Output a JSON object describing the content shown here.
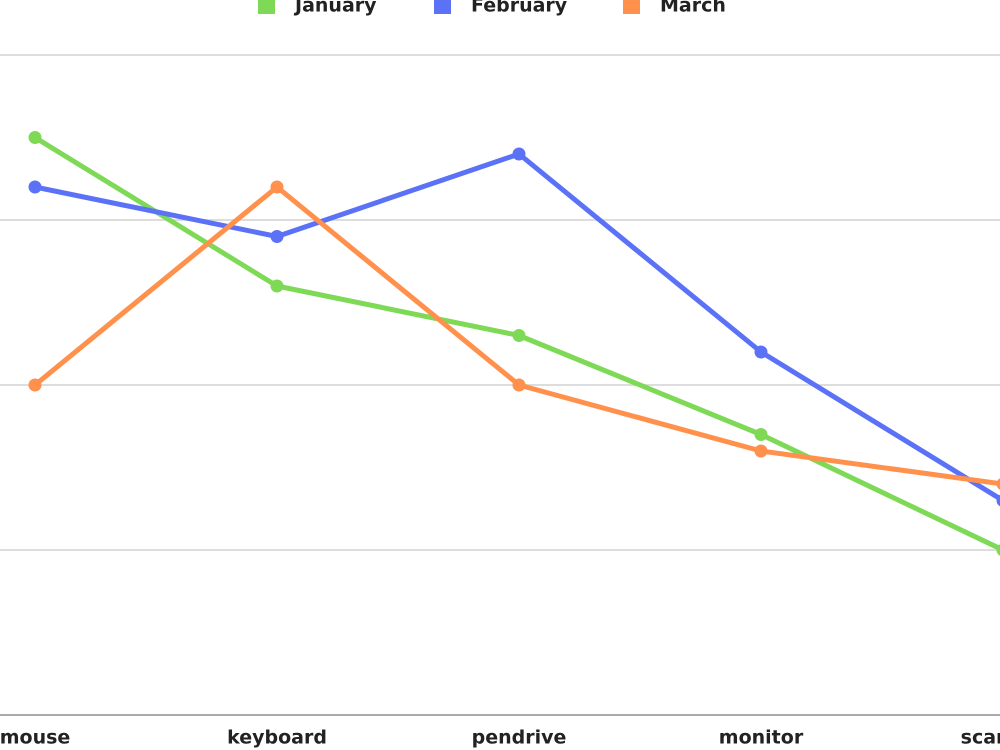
{
  "chart_data": {
    "type": "line",
    "categories": [
      "mouse",
      "keyboard",
      "pendrive",
      "monitor",
      "scanner"
    ],
    "series": [
      {
        "name": "January",
        "color": "#7ed957",
        "values": [
          35,
          26,
          23,
          17,
          10
        ]
      },
      {
        "name": "February",
        "color": "#5b72f7",
        "values": [
          32,
          29,
          34,
          22,
          13
        ]
      },
      {
        "name": "March",
        "color": "#ff914d",
        "values": [
          20,
          32,
          20,
          16,
          14
        ]
      }
    ],
    "ylim": [
      0,
      40
    ],
    "yticks": [
      0,
      10,
      20,
      30,
      40
    ],
    "grid": true,
    "legend": "top"
  }
}
